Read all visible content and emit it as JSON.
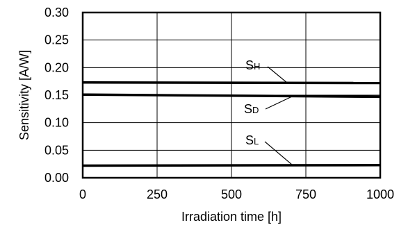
{
  "chart_data": {
    "type": "line",
    "title": "",
    "xlabel": "Irradiation time [h]",
    "ylabel": "Sensitivity [A/W]",
    "xlim": [
      0,
      1000
    ],
    "ylim": [
      0,
      0.3
    ],
    "x_ticks": [
      0,
      250,
      500,
      750,
      1000
    ],
    "y_ticks": [
      0.0,
      0.05,
      0.1,
      0.15,
      0.2,
      0.25,
      0.3
    ],
    "x_tick_labels": [
      "0",
      "250",
      "500",
      "750",
      "1000"
    ],
    "y_tick_labels": [
      "0.00",
      "0.05",
      "0.10",
      "0.15",
      "0.20",
      "0.25",
      "0.30"
    ],
    "grid": true,
    "series": [
      {
        "label_main": "S",
        "label_sub": "H",
        "x": [
          0,
          1000
        ],
        "y": [
          0.173,
          0.172
        ]
      },
      {
        "label_main": "S",
        "label_sub": "D",
        "x": [
          0,
          1000
        ],
        "y": [
          0.151,
          0.147
        ]
      },
      {
        "label_main": "S",
        "label_sub": "L",
        "x": [
          0,
          1000
        ],
        "y": [
          0.022,
          0.023
        ]
      }
    ]
  }
}
